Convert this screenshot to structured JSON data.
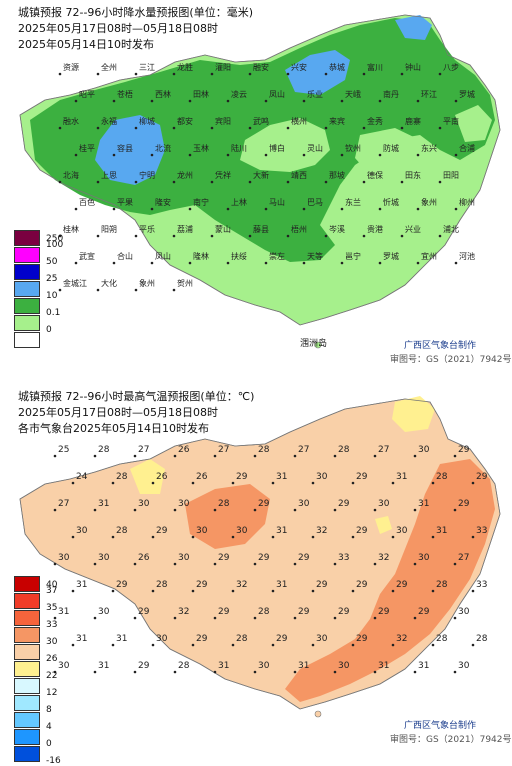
{
  "precip_panel": {
    "title": "城镇预报 72--96小时降水量预报图(单位：毫米)",
    "time_range": "2025年05月17日08时—05月18日08时",
    "issued": "2025年05月14日10时发布",
    "legend": {
      "labels": [
        "250",
        "100",
        "50",
        "25",
        "10",
        "0.1",
        "0"
      ],
      "colors": [
        "#7a0040",
        "#ff00ff",
        "#0000cc",
        "#58a8f0",
        "#3cb040",
        "#a6f08c",
        "#ffffff"
      ]
    },
    "credit": "广西区气象台制作",
    "map_no": "审图号：GS（2021）7942号",
    "island": "涠洲岛",
    "cities": [
      "资源",
      "全州",
      "三江",
      "龙胜",
      "灌阳",
      "融安",
      "兴安",
      "恭城",
      "富川",
      "钟山",
      "八步",
      "昭平",
      "苍梧",
      "西林",
      "田林",
      "凌云",
      "凤山",
      "乐业",
      "天峨",
      "南丹",
      "环江",
      "罗城",
      "融水",
      "永福",
      "柳城",
      "都安",
      "宾阳",
      "武鸣",
      "横州",
      "来宾",
      "金秀",
      "鹿寨",
      "平南",
      "桂平",
      "容县",
      "北流",
      "玉林",
      "陆川",
      "博白",
      "灵山",
      "钦州",
      "防城",
      "东兴",
      "合浦",
      "北海",
      "上思",
      "宁明",
      "龙州",
      "凭祥",
      "大新",
      "靖西",
      "那坡",
      "德保",
      "田东",
      "田阳",
      "百色",
      "平果",
      "隆安",
      "南宁",
      "上林",
      "马山",
      "巴马",
      "东兰",
      "忻城",
      "象州",
      "柳州",
      "桂林",
      "阳朔",
      "平乐",
      "荔浦",
      "蒙山",
      "藤县",
      "梧州",
      "岑溪",
      "贵港",
      "兴业",
      "浦北",
      "武宣",
      "合山",
      "凤山",
      "隆林",
      "扶绥",
      "崇左",
      "天等",
      "邕宁",
      "罗城",
      "宜州",
      "河池",
      "金城江",
      "大化",
      "象州",
      "贺州"
    ]
  },
  "temp_panel": {
    "title": "城镇预报 72--96小时最高气温预报图(单位：℃)",
    "time_range": "2025年05月17日08时—05月18日08时",
    "issued": "各市气象台2025年05月14日10时发布",
    "legend": {
      "labels": [
        "40",
        "37",
        "35",
        "33",
        "30",
        "26",
        "22",
        "12",
        "8",
        "4",
        "0",
        "-16"
      ],
      "colors": [
        "#c80000",
        "#f03c28",
        "#f5643c",
        "#f59664",
        "#f9d0a8",
        "#fff090",
        "#d8f8ff",
        "#a0e8ff",
        "#64c8ff",
        "#1e96ff",
        "#0050dc"
      ]
    },
    "credit": "广西区气象台制作",
    "map_no": "审图号：GS（2021）7942号"
  },
  "temps": [
    {
      "v": "25"
    },
    {
      "v": "28"
    },
    {
      "v": "27"
    },
    {
      "v": "26"
    },
    {
      "v": "27"
    },
    {
      "v": "28"
    },
    {
      "v": "27"
    },
    {
      "v": "28"
    },
    {
      "v": "27"
    },
    {
      "v": "30"
    },
    {
      "v": "29"
    },
    {
      "v": "24"
    },
    {
      "v": "28"
    },
    {
      "v": "26"
    },
    {
      "v": "26"
    },
    {
      "v": "29"
    },
    {
      "v": "31"
    },
    {
      "v": "30"
    },
    {
      "v": "29"
    },
    {
      "v": "31"
    },
    {
      "v": "28"
    },
    {
      "v": "29"
    },
    {
      "v": "27"
    },
    {
      "v": "31"
    },
    {
      "v": "30"
    },
    {
      "v": "30"
    },
    {
      "v": "28"
    },
    {
      "v": "29"
    },
    {
      "v": "30"
    },
    {
      "v": "29"
    },
    {
      "v": "30"
    },
    {
      "v": "31"
    },
    {
      "v": "29"
    },
    {
      "v": "30"
    },
    {
      "v": "28"
    },
    {
      "v": "29"
    },
    {
      "v": "30"
    },
    {
      "v": "30"
    },
    {
      "v": "31"
    },
    {
      "v": "32"
    },
    {
      "v": "29"
    },
    {
      "v": "30"
    },
    {
      "v": "31"
    },
    {
      "v": "33"
    },
    {
      "v": "30"
    },
    {
      "v": "30"
    },
    {
      "v": "26"
    },
    {
      "v": "30"
    },
    {
      "v": "29"
    },
    {
      "v": "29"
    },
    {
      "v": "29"
    },
    {
      "v": "33"
    },
    {
      "v": "32"
    },
    {
      "v": "30"
    },
    {
      "v": "27"
    },
    {
      "v": "31"
    },
    {
      "v": "29"
    },
    {
      "v": "28"
    },
    {
      "v": "29"
    },
    {
      "v": "32"
    },
    {
      "v": "31"
    },
    {
      "v": "29"
    },
    {
      "v": "29"
    },
    {
      "v": "29"
    },
    {
      "v": "28"
    },
    {
      "v": "33"
    },
    {
      "v": "31"
    },
    {
      "v": "30"
    },
    {
      "v": "29"
    },
    {
      "v": "32"
    },
    {
      "v": "29"
    },
    {
      "v": "28"
    },
    {
      "v": "29"
    },
    {
      "v": "29"
    },
    {
      "v": "29"
    },
    {
      "v": "29"
    },
    {
      "v": "30"
    },
    {
      "v": "31"
    },
    {
      "v": "31"
    },
    {
      "v": "30"
    },
    {
      "v": "29"
    },
    {
      "v": "28"
    },
    {
      "v": "29"
    },
    {
      "v": "30"
    },
    {
      "v": "29"
    },
    {
      "v": "32"
    },
    {
      "v": "28"
    },
    {
      "v": "28"
    },
    {
      "v": "30"
    },
    {
      "v": "31"
    },
    {
      "v": "29"
    },
    {
      "v": "28"
    },
    {
      "v": "31"
    },
    {
      "v": "30"
    },
    {
      "v": "31"
    },
    {
      "v": "30"
    },
    {
      "v": "31"
    },
    {
      "v": "31"
    },
    {
      "v": "30"
    }
  ]
}
